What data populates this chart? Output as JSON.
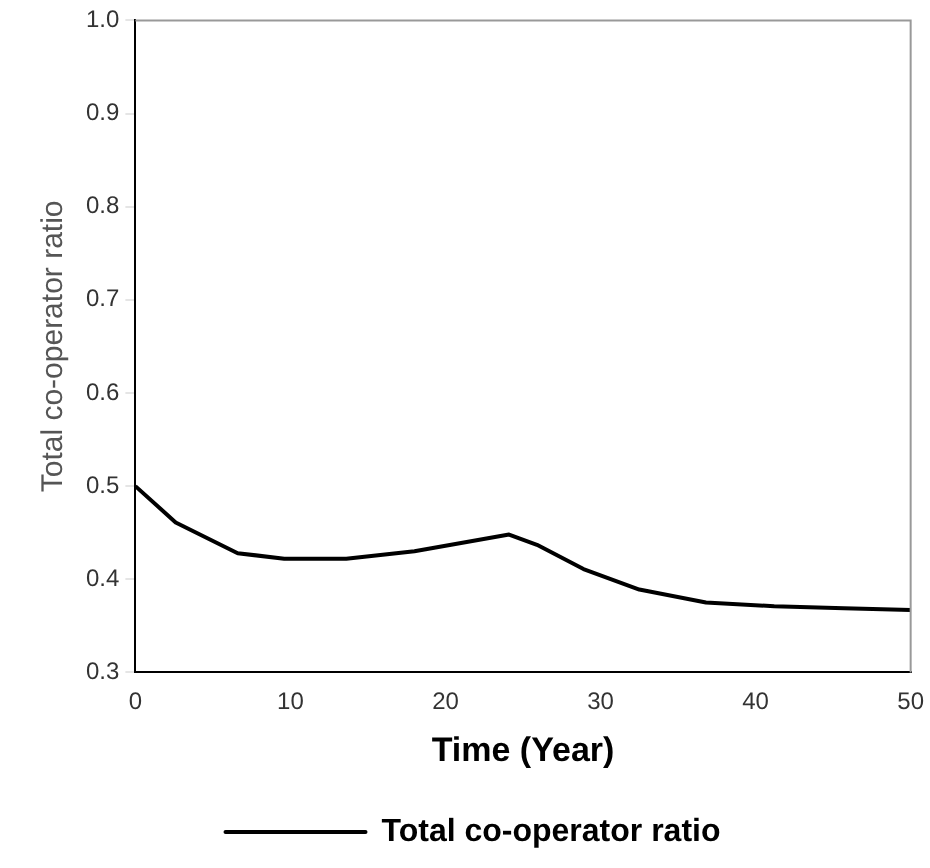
{
  "chart_data": {
    "type": "line",
    "xlabel": "Time (Year)",
    "ylabel": "Total co-operator ratio",
    "series": [
      {
        "name": "Total co-operator ratio",
        "color": "#000000",
        "x": [
          0,
          2.6,
          6.6,
          9.6,
          13.6,
          18,
          24.1,
          25.9,
          28.9,
          32.5,
          36.8,
          41.2,
          45.7,
          50
        ],
        "values": [
          0.5,
          0.461,
          0.428,
          0.422,
          0.422,
          0.43,
          0.448,
          0.437,
          0.411,
          0.389,
          0.375,
          0.371,
          0.369,
          0.367
        ]
      }
    ],
    "xlim": [
      0,
      50
    ],
    "xticks": [
      0,
      10,
      20,
      30,
      40,
      50
    ],
    "ylim": [
      0.3,
      1.0
    ],
    "yticks": [
      {
        "value": 0.3,
        "label": "0.3"
      },
      {
        "value": 0.4,
        "label": "0.4"
      },
      {
        "value": 0.5,
        "label": "0.5"
      },
      {
        "value": 0.6,
        "label": "0.6"
      },
      {
        "value": 0.7,
        "label": "0.7"
      },
      {
        "value": 0.8,
        "label": "0.8"
      },
      {
        "value": 0.9,
        "label": "0.9"
      },
      {
        "value": 1.0,
        "label": "1.0"
      }
    ],
    "grid": false,
    "legend": "bottom",
    "marker": "none",
    "line_style": "solid"
  }
}
